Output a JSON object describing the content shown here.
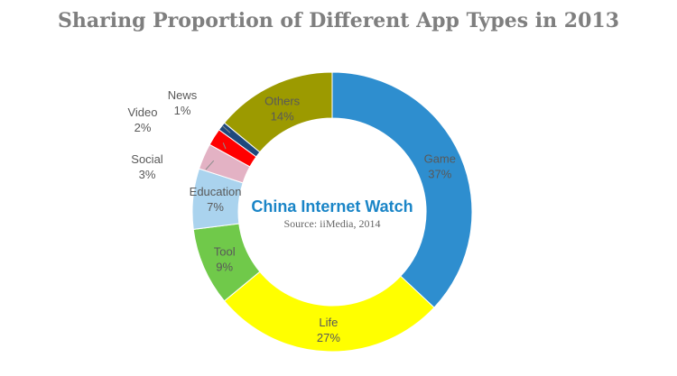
{
  "chart_data": {
    "type": "pie",
    "variant": "donut",
    "title": "Sharing Proportion of Different App Types in 2013",
    "slices": [
      {
        "label": "Game",
        "value": 37,
        "display": "37%",
        "color": "#2e8ecf"
      },
      {
        "label": "Life",
        "value": 27,
        "display": "27%",
        "color": "#ffff00"
      },
      {
        "label": "Tool",
        "value": 9,
        "display": "9%",
        "color": "#70c94a"
      },
      {
        "label": "Education",
        "value": 7,
        "display": "7%",
        "color": "#aad3ee"
      },
      {
        "label": "Social",
        "value": 3,
        "display": "3%",
        "color": "#e3b2c4"
      },
      {
        "label": "Video",
        "value": 2,
        "display": "2%",
        "color": "#ff0000"
      },
      {
        "label": "News",
        "value": 1,
        "display": "1%",
        "color": "#1f497d"
      },
      {
        "label": "Others",
        "value": 14,
        "display": "14%",
        "color": "#9c9a00"
      }
    ],
    "watermark": "China Internet  Watch",
    "source": "Source: iiMedia, 2014"
  }
}
